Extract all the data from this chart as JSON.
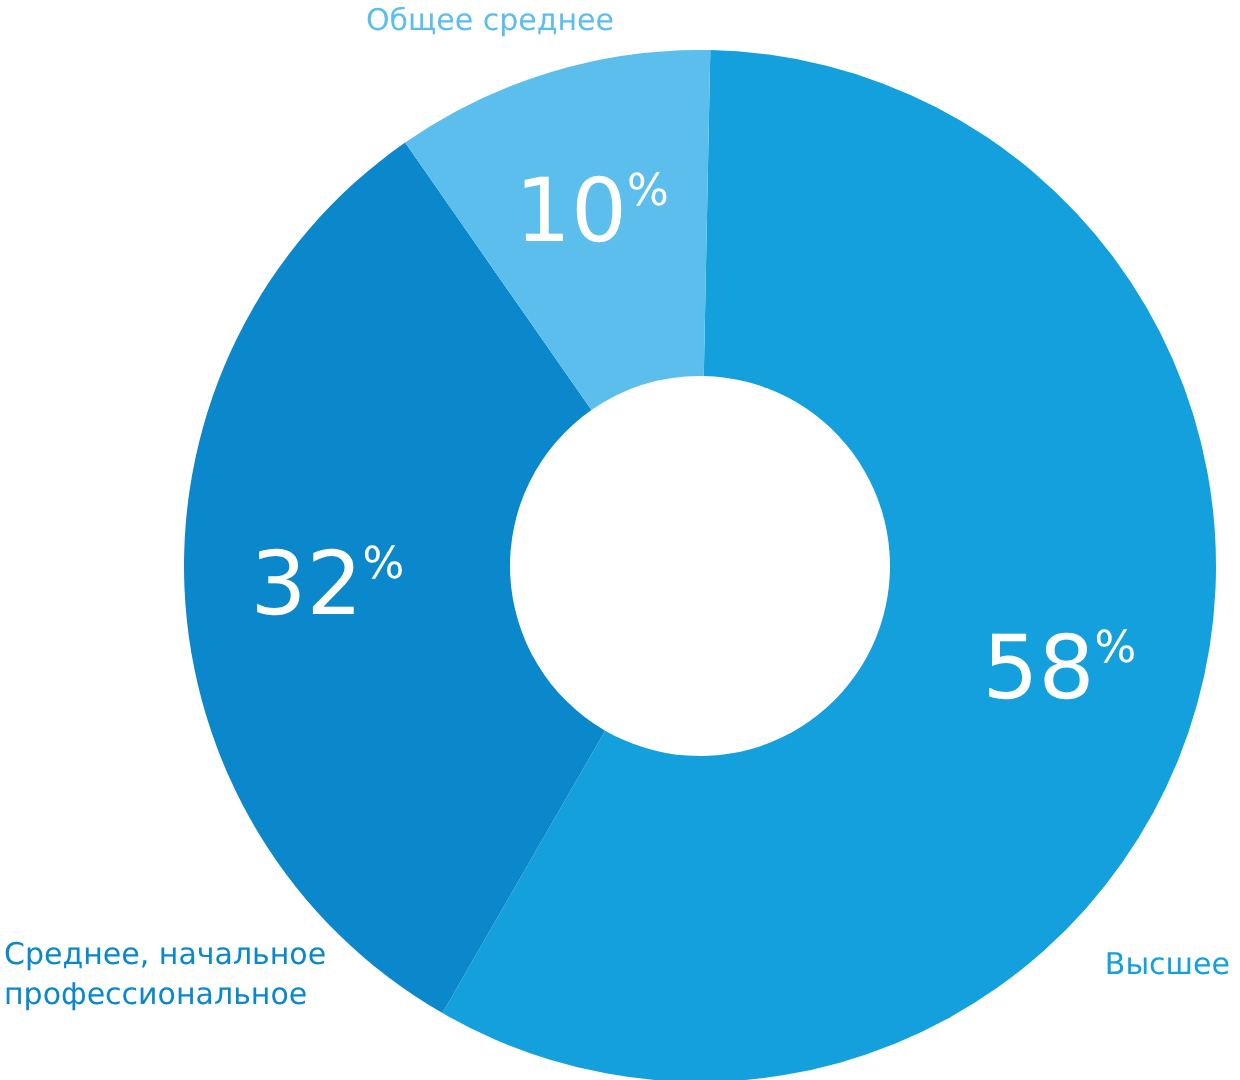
{
  "chart_data": {
    "type": "donut",
    "categories": [
      "Высшее",
      "Среднее, начальное профессиональное",
      "Общее среднее"
    ],
    "values": [
      58,
      32,
      10
    ],
    "colors": [
      "#14a0dc",
      "#0a88cb",
      "#5cbeec"
    ],
    "value_labels": [
      "58$^{%}$",
      "32$^{%}$",
      "10$^{%}$"
    ]
  }
}
